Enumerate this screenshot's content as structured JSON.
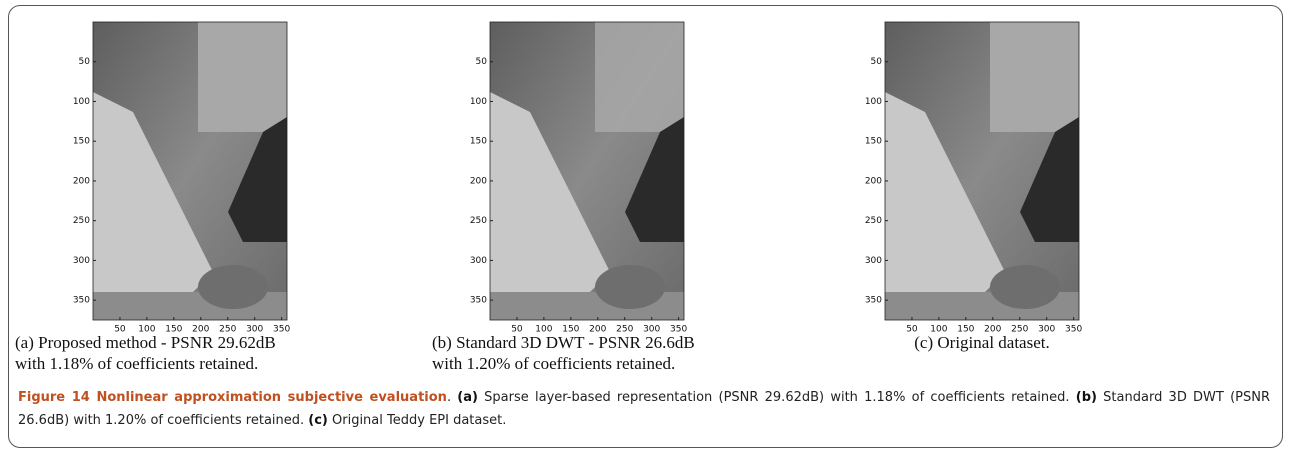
{
  "panels": [
    {
      "image": {
        "xlim": [
          0,
          360
        ],
        "ylim": [
          0,
          375
        ],
        "xticks": [
          50,
          100,
          150,
          200,
          250,
          300,
          350
        ],
        "yticks": [
          50,
          100,
          150,
          200,
          250,
          300,
          350
        ]
      },
      "caption": [
        "(a) Proposed method - PSNR 29.62dB",
        "with 1.18% of coefficients retained."
      ]
    },
    {
      "image": {
        "xlim": [
          0,
          360
        ],
        "ylim": [
          0,
          375
        ],
        "xticks": [
          50,
          100,
          150,
          200,
          250,
          300,
          350
        ],
        "yticks": [
          50,
          100,
          150,
          200,
          250,
          300,
          350
        ]
      },
      "caption": [
        "(b) Standard 3D DWT - PSNR 26.6dB",
        "with 1.20% of coefficients retained."
      ]
    },
    {
      "image": {
        "xlim": [
          0,
          360
        ],
        "ylim": [
          0,
          375
        ],
        "xticks": [
          50,
          100,
          150,
          200,
          250,
          300,
          350
        ],
        "yticks": [
          50,
          100,
          150,
          200,
          250,
          300,
          350
        ]
      },
      "caption": [
        "(c) Original dataset."
      ]
    }
  ],
  "figure_caption": [
    {
      "text": "Figure 14 Nonlinear approximation subjective evaluation",
      "bold": true
    },
    {
      "text": ". "
    },
    {
      "text": "(a)",
      "bold": true
    },
    {
      "text": " Sparse layer-based representation (PSNR 29.62dB) with 1.18% of coefficients retained. "
    },
    {
      "text": "(b)",
      "bold": true
    },
    {
      "text": " Standard 3D DWT (PSNR 26.6dB) with 1.20% of coefficients retained. "
    },
    {
      "text": "(c)",
      "bold": true
    },
    {
      "text": " Original Teddy EPI dataset."
    }
  ]
}
